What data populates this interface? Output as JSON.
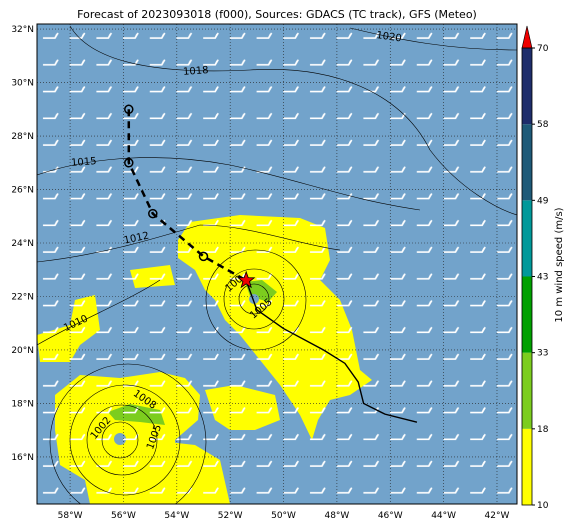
{
  "title": "Forecast of 2023093018 (f000), Sources: GDACS (TC track), GFS (Meteo)",
  "map": {
    "xlim": [
      -59.24,
      -41.25
    ],
    "ylim": [
      14.24,
      32.19
    ],
    "xticks": [
      {
        "value": -58,
        "label": "58°W"
      },
      {
        "value": -56,
        "label": "56°W"
      },
      {
        "value": -54,
        "label": "54°W"
      },
      {
        "value": -52,
        "label": "52°W"
      },
      {
        "value": -50,
        "label": "50°W"
      },
      {
        "value": -48,
        "label": "48°W"
      },
      {
        "value": -46,
        "label": "46°W"
      },
      {
        "value": -44,
        "label": "44°W"
      },
      {
        "value": -42,
        "label": "42°W"
      }
    ],
    "yticks": [
      {
        "value": 16,
        "label": "16°N"
      },
      {
        "value": 18,
        "label": "18°N"
      },
      {
        "value": 20,
        "label": "20°N"
      },
      {
        "value": 22,
        "label": "22°N"
      },
      {
        "value": 24,
        "label": "24°N"
      },
      {
        "value": 26,
        "label": "26°N"
      },
      {
        "value": 28,
        "label": "28°N"
      },
      {
        "value": 30,
        "label": "30°N"
      },
      {
        "value": 32,
        "label": "32°N"
      }
    ],
    "track_points": [
      {
        "lon": -55.8,
        "lat": 29.0
      },
      {
        "lon": -55.8,
        "lat": 27.0
      },
      {
        "lon": -54.9,
        "lat": 25.1
      },
      {
        "lon": -53.0,
        "lat": 23.5
      }
    ],
    "storm_position": {
      "lon": -51.4,
      "lat": 22.6
    },
    "track_line": [
      {
        "lon": -51.4,
        "lat": 22.6
      },
      {
        "lon": -51.0,
        "lat": 21.5
      },
      {
        "lon": -50.0,
        "lat": 20.8
      },
      {
        "lon": -48.5,
        "lat": 20.0
      },
      {
        "lon": -47.7,
        "lat": 19.5
      },
      {
        "lon": -47.2,
        "lat": 18.8
      },
      {
        "lon": -47.0,
        "lat": 18.0
      },
      {
        "lon": -46.2,
        "lat": 17.6
      },
      {
        "lon": -45.0,
        "lat": 17.3
      }
    ]
  },
  "colorbar": {
    "label": "10 m wind speed (m/s)",
    "ticks": [
      10,
      18,
      33,
      43,
      49,
      58,
      70
    ],
    "colors": [
      "#ffff00",
      "#7ccd1e",
      "#00a000",
      "#00999a",
      "#1e5a78",
      "#1e2d6b"
    ],
    "extend_color": "#ee0000"
  },
  "isobar_labels": [
    "1020",
    "1018",
    "1015",
    "1012",
    "1010",
    "1008",
    "1002",
    "1005",
    "100",
    "1005"
  ]
}
